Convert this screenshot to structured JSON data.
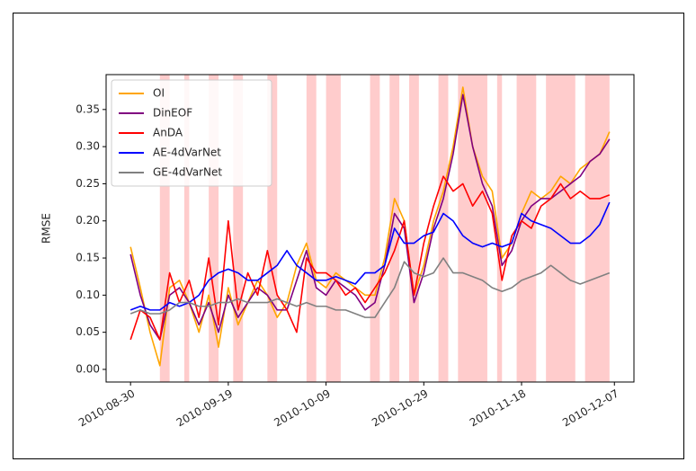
{
  "chart_data": {
    "type": "line",
    "y_label": "RMSE",
    "x": [
      "2010-08-30",
      "2010-09-01",
      "2010-09-03",
      "2010-09-05",
      "2010-09-07",
      "2010-09-09",
      "2010-09-11",
      "2010-09-13",
      "2010-09-15",
      "2010-09-17",
      "2010-09-19",
      "2010-09-21",
      "2010-09-23",
      "2010-09-25",
      "2010-09-27",
      "2010-09-29",
      "2010-10-01",
      "2010-10-03",
      "2010-10-05",
      "2010-10-07",
      "2010-10-09",
      "2010-10-11",
      "2010-10-13",
      "2010-10-15",
      "2010-10-17",
      "2010-10-19",
      "2010-10-21",
      "2010-10-23",
      "2010-10-25",
      "2010-10-27",
      "2010-10-29",
      "2010-10-31",
      "2010-11-02",
      "2010-11-04",
      "2010-11-06",
      "2010-11-08",
      "2010-11-10",
      "2010-11-12",
      "2010-11-14",
      "2010-11-16",
      "2010-11-18",
      "2010-11-20",
      "2010-11-22",
      "2010-11-24",
      "2010-11-26",
      "2010-11-28",
      "2010-11-30",
      "2010-12-02",
      "2010-12-04",
      "2010-12-06"
    ],
    "series": [
      {
        "name": "OI",
        "color": "#ffa500",
        "values": [
          0.165,
          0.11,
          0.05,
          0.005,
          0.11,
          0.12,
          0.09,
          0.05,
          0.1,
          0.03,
          0.11,
          0.06,
          0.09,
          0.12,
          0.1,
          0.07,
          0.09,
          0.14,
          0.17,
          0.12,
          0.11,
          0.13,
          0.12,
          0.11,
          0.1,
          0.1,
          0.15,
          0.23,
          0.2,
          0.1,
          0.14,
          0.2,
          0.24,
          0.3,
          0.38,
          0.3,
          0.26,
          0.24,
          0.15,
          0.17,
          0.21,
          0.24,
          0.23,
          0.24,
          0.26,
          0.25,
          0.27,
          0.28,
          0.29,
          0.32
        ]
      },
      {
        "name": "DinEOF",
        "color": "#800080",
        "values": [
          0.155,
          0.1,
          0.06,
          0.04,
          0.1,
          0.11,
          0.09,
          0.06,
          0.09,
          0.05,
          0.1,
          0.07,
          0.09,
          0.11,
          0.1,
          0.08,
          0.08,
          0.12,
          0.16,
          0.11,
          0.1,
          0.12,
          0.11,
          0.1,
          0.08,
          0.09,
          0.14,
          0.21,
          0.19,
          0.09,
          0.13,
          0.19,
          0.23,
          0.29,
          0.37,
          0.3,
          0.25,
          0.22,
          0.14,
          0.16,
          0.2,
          0.22,
          0.23,
          0.23,
          0.24,
          0.25,
          0.26,
          0.28,
          0.29,
          0.31
        ]
      },
      {
        "name": "AnDA",
        "color": "#ff0000",
        "values": [
          0.04,
          0.08,
          0.07,
          0.04,
          0.13,
          0.09,
          0.12,
          0.07,
          0.15,
          0.06,
          0.2,
          0.08,
          0.13,
          0.1,
          0.16,
          0.1,
          0.08,
          0.05,
          0.15,
          0.13,
          0.13,
          0.12,
          0.1,
          0.11,
          0.09,
          0.11,
          0.13,
          0.16,
          0.2,
          0.1,
          0.17,
          0.22,
          0.26,
          0.24,
          0.25,
          0.22,
          0.24,
          0.21,
          0.12,
          0.18,
          0.2,
          0.19,
          0.22,
          0.23,
          0.25,
          0.23,
          0.24,
          0.23,
          0.23,
          0.235
        ]
      },
      {
        "name": "AE-4dVarNet",
        "color": "#0000ff",
        "values": [
          0.08,
          0.085,
          0.08,
          0.08,
          0.09,
          0.085,
          0.09,
          0.1,
          0.12,
          0.13,
          0.135,
          0.13,
          0.12,
          0.12,
          0.13,
          0.14,
          0.16,
          0.14,
          0.13,
          0.12,
          0.12,
          0.125,
          0.12,
          0.115,
          0.13,
          0.13,
          0.14,
          0.19,
          0.17,
          0.17,
          0.18,
          0.185,
          0.21,
          0.2,
          0.18,
          0.17,
          0.165,
          0.17,
          0.165,
          0.17,
          0.21,
          0.2,
          0.195,
          0.19,
          0.18,
          0.17,
          0.17,
          0.18,
          0.195,
          0.225
        ]
      },
      {
        "name": "GE-4dVarNet",
        "color": "#808080",
        "values": [
          0.075,
          0.08,
          0.075,
          0.075,
          0.08,
          0.09,
          0.09,
          0.085,
          0.085,
          0.09,
          0.09,
          0.095,
          0.09,
          0.09,
          0.09,
          0.095,
          0.09,
          0.085,
          0.09,
          0.085,
          0.085,
          0.08,
          0.08,
          0.075,
          0.07,
          0.07,
          0.09,
          0.11,
          0.145,
          0.13,
          0.125,
          0.13,
          0.15,
          0.13,
          0.13,
          0.125,
          0.12,
          0.11,
          0.105,
          0.11,
          0.12,
          0.125,
          0.13,
          0.14,
          0.13,
          0.12,
          0.115,
          0.12,
          0.125,
          0.13
        ]
      }
    ],
    "shaded_spans": [
      [
        "2010-09-05",
        "2010-09-07"
      ],
      [
        "2010-09-10",
        "2010-09-11"
      ],
      [
        "2010-09-15",
        "2010-09-17"
      ],
      [
        "2010-09-20",
        "2010-09-22"
      ],
      [
        "2010-09-27",
        "2010-09-29"
      ],
      [
        "2010-10-05",
        "2010-10-07"
      ],
      [
        "2010-10-09",
        "2010-10-12"
      ],
      [
        "2010-10-18",
        "2010-10-20"
      ],
      [
        "2010-10-22",
        "2010-10-24"
      ],
      [
        "2010-10-26",
        "2010-10-28"
      ],
      [
        "2010-11-01",
        "2010-11-03"
      ],
      [
        "2010-11-05",
        "2010-11-11"
      ],
      [
        "2010-11-13",
        "2010-11-14"
      ],
      [
        "2010-11-17",
        "2010-11-21"
      ],
      [
        "2010-11-23",
        "2010-11-29"
      ],
      [
        "2010-12-01",
        "2010-12-06"
      ]
    ],
    "shade_color": "#ffcccc",
    "xlim": [
      "2010-08-25",
      "2010-12-11"
    ],
    "xticks": [
      "2010-08-30",
      "2010-09-19",
      "2010-10-09",
      "2010-10-29",
      "2010-11-18",
      "2010-12-07"
    ],
    "ylim": [
      -0.017,
      0.397
    ],
    "yticks": [
      {
        "value": 0,
        "label": "0.00"
      },
      0.05,
      {
        "value": 0.1,
        "label": "0.10"
      },
      0.15,
      {
        "value": 0.2,
        "label": "0.20"
      },
      0.25,
      {
        "value": 0.3,
        "label": "0.30"
      },
      0.35
    ],
    "grid": false,
    "legend": "upper left"
  }
}
